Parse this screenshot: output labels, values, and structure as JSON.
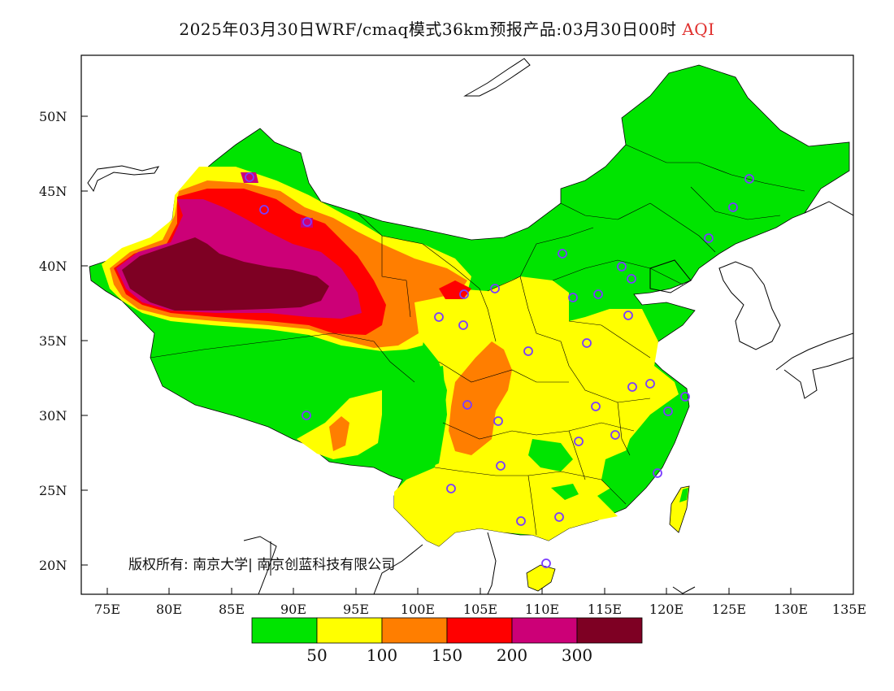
{
  "title": {
    "main": "2025年03月30日WRF/cmaq模式36km预报产品:03月30日00时",
    "variable": "AQI"
  },
  "axes": {
    "lat_ticks": [
      "50N",
      "45N",
      "40N",
      "35N",
      "30N",
      "25N",
      "20N"
    ],
    "lon_ticks": [
      "75E",
      "80E",
      "85E",
      "90E",
      "95E",
      "100E",
      "105E",
      "110E",
      "115E",
      "120E",
      "125E",
      "130E",
      "135E"
    ]
  },
  "colorbar": {
    "colors": [
      "#00e400",
      "#ffff00",
      "#ff7e00",
      "#ff0000",
      "#cc0077",
      "#7e0023"
    ],
    "labels": [
      "50",
      "100",
      "150",
      "200",
      "300"
    ]
  },
  "copyright": "版权所有: 南京大学| 南京创蓝科技有限公司",
  "marker_color": "#7a3cff"
}
